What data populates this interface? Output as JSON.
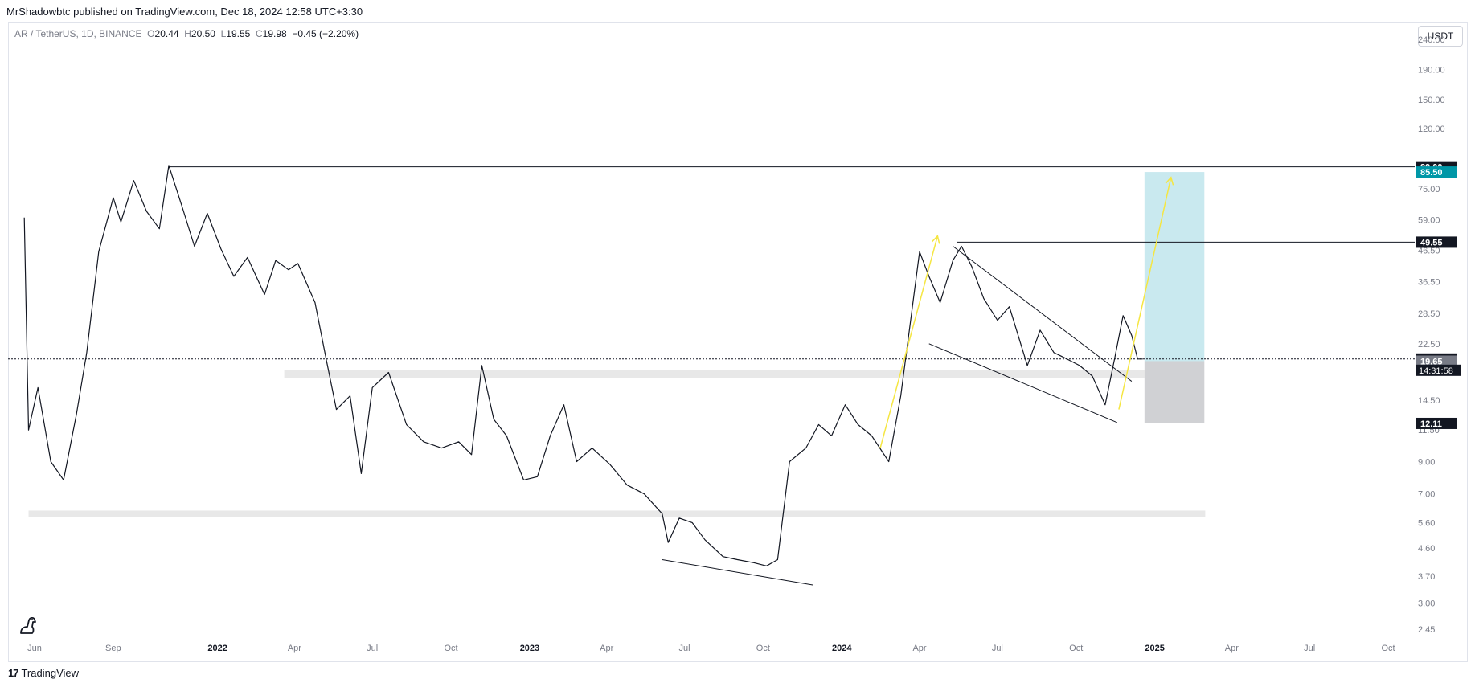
{
  "header": {
    "published_by": "MrShadowbtc published on TradingView.com, Dec 18, 2024 12:58 UTC+3:30"
  },
  "legend": {
    "symbol": "AR / TetherUS, 1D, BINANCE",
    "open_label": "O",
    "open": "20.44",
    "high_label": "H",
    "high": "20.50",
    "low_label": "L",
    "low": "19.55",
    "close_label": "C",
    "close": "19.98",
    "change": "−0.45 (−2.20%)"
  },
  "unit_button": "USDT",
  "footer": {
    "brand": "TradingView",
    "logo_text": "17"
  },
  "colors": {
    "line": "#131722",
    "arrow": "#f5e642",
    "target_zone": "#b2e0e8",
    "stop_zone": "#c8c9cc",
    "support_band": "#e8e8e8",
    "label_dark": "#131722",
    "label_teal": "#0097a7",
    "label_gray": "#787b86"
  },
  "chart_data": {
    "type": "line",
    "scale": "log",
    "ylim": [
      2.2,
      270
    ],
    "y_ticks": [
      {
        "value": 240,
        "label": "240.00"
      },
      {
        "value": 190,
        "label": "190.00"
      },
      {
        "value": 150,
        "label": "150.00"
      },
      {
        "value": 120,
        "label": "120.00"
      },
      {
        "value": 75,
        "label": "75.00"
      },
      {
        "value": 59,
        "label": "59.00"
      },
      {
        "value": 46.5,
        "label": "46.50"
      },
      {
        "value": 36.5,
        "label": "36.50"
      },
      {
        "value": 28.5,
        "label": "28.50"
      },
      {
        "value": 22.5,
        "label": "22.50"
      },
      {
        "value": 14.5,
        "label": "14.50"
      },
      {
        "value": 11.5,
        "label": "11.50"
      },
      {
        "value": 9,
        "label": "9.00"
      },
      {
        "value": 7,
        "label": "7.00"
      },
      {
        "value": 5.6,
        "label": "5.60"
      },
      {
        "value": 4.6,
        "label": "4.60"
      },
      {
        "value": 3.7,
        "label": "3.70"
      },
      {
        "value": 3.0,
        "label": "3.00"
      },
      {
        "value": 2.45,
        "label": "2.45"
      }
    ],
    "x_ticks": [
      {
        "date": "2021-06-01",
        "label": "Jun"
      },
      {
        "date": "2021-09-01",
        "label": "Sep"
      },
      {
        "date": "2022-01-01",
        "label": "2022"
      },
      {
        "date": "2022-04-01",
        "label": "Apr"
      },
      {
        "date": "2022-07-01",
        "label": "Jul"
      },
      {
        "date": "2022-10-01",
        "label": "Oct"
      },
      {
        "date": "2023-01-01",
        "label": "2023"
      },
      {
        "date": "2023-04-01",
        "label": "Apr"
      },
      {
        "date": "2023-07-01",
        "label": "Jul"
      },
      {
        "date": "2023-10-01",
        "label": "Oct"
      },
      {
        "date": "2024-01-01",
        "label": "2024"
      },
      {
        "date": "2024-04-01",
        "label": "Apr"
      },
      {
        "date": "2024-07-01",
        "label": "Jul"
      },
      {
        "date": "2024-10-01",
        "label": "Oct"
      },
      {
        "date": "2025-01-01",
        "label": "2025"
      },
      {
        "date": "2025-04-01",
        "label": "Apr"
      },
      {
        "date": "2025-07-01",
        "label": "Jul"
      },
      {
        "date": "2025-10-01",
        "label": "Oct"
      }
    ],
    "price_labels": [
      {
        "value": 89.0,
        "label": "89.00",
        "style": "dark"
      },
      {
        "value": 85.5,
        "label": "85.50",
        "style": "teal"
      },
      {
        "value": 49.55,
        "label": "49.55",
        "style": "dark"
      },
      {
        "value": 19.98,
        "label": "19.98",
        "style": "dark"
      },
      {
        "value": 19.65,
        "label": "19.65",
        "style": "gray"
      },
      {
        "value": 12.11,
        "label": "12.11",
        "style": "dark"
      }
    ],
    "countdown": "14:31:58",
    "series": [
      {
        "x": [
          "2021-05-20",
          "2021-05-25",
          "2021-06-05",
          "2021-06-20",
          "2021-07-05",
          "2021-07-20",
          "2021-08-01",
          "2021-08-15",
          "2021-09-01",
          "2021-09-10",
          "2021-09-25",
          "2021-10-10",
          "2021-10-25",
          "2021-11-05",
          "2021-11-20",
          "2021-12-05",
          "2021-12-20",
          "2022-01-05",
          "2022-01-20",
          "2022-02-05",
          "2022-02-25",
          "2022-03-10",
          "2022-03-25",
          "2022-04-05",
          "2022-04-25",
          "2022-05-08",
          "2022-05-20",
          "2022-06-05",
          "2022-06-18",
          "2022-07-01",
          "2022-07-20",
          "2022-08-10",
          "2022-08-30",
          "2022-09-20",
          "2022-10-10",
          "2022-10-25",
          "2022-11-06",
          "2022-11-20",
          "2022-12-05",
          "2022-12-25",
          "2023-01-10",
          "2023-01-25",
          "2023-02-10",
          "2023-02-25",
          "2023-03-15",
          "2023-04-05",
          "2023-04-25",
          "2023-05-15",
          "2023-06-05",
          "2023-06-12",
          "2023-06-25",
          "2023-07-10",
          "2023-07-25",
          "2023-08-15",
          "2023-09-01",
          "2023-09-20",
          "2023-10-05",
          "2023-10-18",
          "2023-11-01",
          "2023-11-20",
          "2023-12-05",
          "2023-12-20",
          "2024-01-05",
          "2024-01-20",
          "2024-02-05",
          "2024-02-25",
          "2024-03-10",
          "2024-03-20",
          "2024-04-01",
          "2024-04-12",
          "2024-04-25",
          "2024-05-10",
          "2024-05-20",
          "2024-06-01",
          "2024-06-15",
          "2024-07-01",
          "2024-07-15",
          "2024-08-05",
          "2024-08-20",
          "2024-09-05",
          "2024-09-20",
          "2024-10-05",
          "2024-10-20",
          "2024-11-04",
          "2024-11-15",
          "2024-11-25",
          "2024-12-05",
          "2024-12-12",
          "2024-12-18"
        ],
        "y": [
          60,
          11.5,
          16,
          9,
          7.8,
          13,
          21,
          46,
          70,
          58,
          80,
          63,
          55,
          90,
          66,
          48,
          62,
          47,
          38,
          44,
          33,
          43,
          40,
          42,
          31,
          20,
          13.5,
          15,
          8.2,
          16,
          18,
          12,
          10.5,
          10,
          10.5,
          9.5,
          19,
          12.5,
          11,
          7.8,
          8,
          11,
          14,
          9,
          10,
          8.8,
          7.5,
          7.0,
          6.0,
          4.8,
          5.8,
          5.6,
          4.9,
          4.3,
          4.2,
          4.1,
          4.0,
          4.2,
          9,
          10,
          12,
          11,
          14,
          12,
          11,
          9,
          15,
          25,
          46,
          38,
          31,
          43,
          48,
          41,
          32,
          27,
          30,
          19,
          25,
          21,
          20,
          19,
          17.5,
          14,
          20,
          28,
          24,
          19.98,
          19.98
        ]
      }
    ]
  }
}
